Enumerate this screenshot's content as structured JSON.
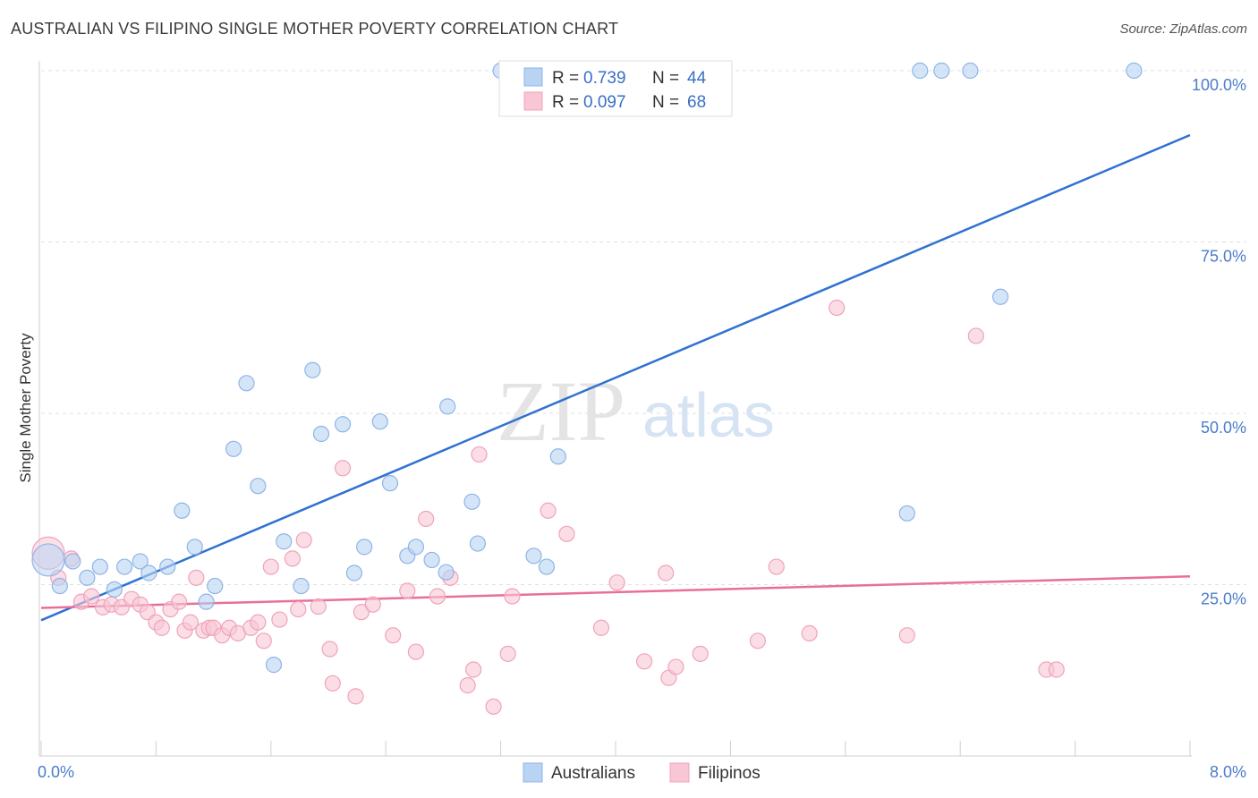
{
  "title": "AUSTRALIAN VS FILIPINO SINGLE MOTHER POVERTY CORRELATION CHART",
  "source": "Source: ZipAtlas.com",
  "watermark": {
    "zip": "ZIP",
    "atlas": "atlas"
  },
  "legend": {
    "rows": [
      {
        "r_label": "R =",
        "r_value": "0.739",
        "n_label": "N =",
        "n_value": "44"
      },
      {
        "r_label": "R =",
        "r_value": "0.097",
        "n_label": "N =",
        "n_value": "68"
      }
    ]
  },
  "bottom_legend": [
    "Australians",
    "Filipinos"
  ],
  "colors": {
    "australians_fill": "#b9d3f3",
    "australians_stroke": "#8fb4e6",
    "australians_line": "#2f72d0",
    "filipinos_fill": "#f8c6d5",
    "filipinos_stroke": "#f0a3ba",
    "filipinos_line": "#e86f98",
    "tick_text": "#4a7cc9"
  },
  "chart_data": {
    "type": "scatter",
    "xlabel": "",
    "ylabel": "Single Mother Poverty",
    "xlim": [
      0,
      8
    ],
    "ylim": [
      0,
      100
    ],
    "x_tick_labels": [
      "0.0%",
      "8.0%"
    ],
    "y_tick_labels": [
      "25.0%",
      "50.0%",
      "75.0%",
      "100.0%"
    ],
    "y_tick_values": [
      25,
      50,
      75,
      100
    ],
    "grid": true,
    "series": [
      {
        "name": "Australians",
        "trend": {
          "x": [
            0,
            8
          ],
          "y": [
            19.8,
            90.6
          ]
        },
        "points": [
          {
            "x": 0.05,
            "y": 28.6,
            "big": true
          },
          {
            "x": 0.13,
            "y": 24.8
          },
          {
            "x": 0.22,
            "y": 28.4
          },
          {
            "x": 0.32,
            "y": 26.0
          },
          {
            "x": 0.41,
            "y": 27.6
          },
          {
            "x": 0.51,
            "y": 24.3
          },
          {
            "x": 0.58,
            "y": 27.6
          },
          {
            "x": 0.69,
            "y": 28.4
          },
          {
            "x": 0.75,
            "y": 26.7
          },
          {
            "x": 0.88,
            "y": 27.6
          },
          {
            "x": 0.98,
            "y": 35.8
          },
          {
            "x": 1.07,
            "y": 30.5
          },
          {
            "x": 1.15,
            "y": 22.5
          },
          {
            "x": 1.21,
            "y": 24.8
          },
          {
            "x": 1.34,
            "y": 44.8
          },
          {
            "x": 1.43,
            "y": 54.4
          },
          {
            "x": 1.51,
            "y": 39.4
          },
          {
            "x": 1.62,
            "y": 13.3
          },
          {
            "x": 1.69,
            "y": 31.3
          },
          {
            "x": 1.81,
            "y": 24.8
          },
          {
            "x": 1.89,
            "y": 56.3
          },
          {
            "x": 1.95,
            "y": 47.0
          },
          {
            "x": 2.1,
            "y": 48.4
          },
          {
            "x": 2.18,
            "y": 26.7
          },
          {
            "x": 2.25,
            "y": 30.5
          },
          {
            "x": 2.36,
            "y": 48.8
          },
          {
            "x": 2.43,
            "y": 39.8
          },
          {
            "x": 2.55,
            "y": 29.2
          },
          {
            "x": 2.61,
            "y": 30.5
          },
          {
            "x": 2.72,
            "y": 28.6
          },
          {
            "x": 2.82,
            "y": 26.8
          },
          {
            "x": 2.83,
            "y": 51.0
          },
          {
            "x": 3.0,
            "y": 37.1
          },
          {
            "x": 3.04,
            "y": 31.0
          },
          {
            "x": 3.2,
            "y": 100.0
          },
          {
            "x": 3.43,
            "y": 29.2
          },
          {
            "x": 3.52,
            "y": 27.6
          },
          {
            "x": 3.6,
            "y": 43.7
          },
          {
            "x": 6.03,
            "y": 35.4
          },
          {
            "x": 6.12,
            "y": 100.0
          },
          {
            "x": 6.27,
            "y": 100.0
          },
          {
            "x": 6.47,
            "y": 100.0
          },
          {
            "x": 6.68,
            "y": 67.0
          },
          {
            "x": 7.61,
            "y": 100.0
          }
        ]
      },
      {
        "name": "Filipinos",
        "trend": {
          "x": [
            0,
            8
          ],
          "y": [
            21.6,
            26.2
          ]
        },
        "points": [
          {
            "x": 0.05,
            "y": 29.6,
            "big": true
          },
          {
            "x": 0.12,
            "y": 26.0
          },
          {
            "x": 0.21,
            "y": 28.8
          },
          {
            "x": 0.28,
            "y": 22.5
          },
          {
            "x": 0.35,
            "y": 23.3
          },
          {
            "x": 0.43,
            "y": 21.7
          },
          {
            "x": 0.49,
            "y": 22.1
          },
          {
            "x": 0.56,
            "y": 21.7
          },
          {
            "x": 0.63,
            "y": 22.9
          },
          {
            "x": 0.69,
            "y": 22.1
          },
          {
            "x": 0.74,
            "y": 21.0
          },
          {
            "x": 0.8,
            "y": 19.5
          },
          {
            "x": 0.84,
            "y": 18.7
          },
          {
            "x": 0.9,
            "y": 21.4
          },
          {
            "x": 0.96,
            "y": 22.5
          },
          {
            "x": 1.0,
            "y": 18.3
          },
          {
            "x": 1.04,
            "y": 19.5
          },
          {
            "x": 1.08,
            "y": 26.0
          },
          {
            "x": 1.13,
            "y": 18.3
          },
          {
            "x": 1.17,
            "y": 18.7
          },
          {
            "x": 1.2,
            "y": 18.7
          },
          {
            "x": 1.26,
            "y": 17.6
          },
          {
            "x": 1.31,
            "y": 18.7
          },
          {
            "x": 1.37,
            "y": 17.9
          },
          {
            "x": 1.46,
            "y": 18.7
          },
          {
            "x": 1.51,
            "y": 19.5
          },
          {
            "x": 1.55,
            "y": 16.8
          },
          {
            "x": 1.6,
            "y": 27.6
          },
          {
            "x": 1.66,
            "y": 19.9
          },
          {
            "x": 1.75,
            "y": 28.8
          },
          {
            "x": 1.79,
            "y": 21.4
          },
          {
            "x": 1.83,
            "y": 31.5
          },
          {
            "x": 1.93,
            "y": 21.8
          },
          {
            "x": 2.01,
            "y": 15.6
          },
          {
            "x": 2.03,
            "y": 10.6
          },
          {
            "x": 2.1,
            "y": 42.0
          },
          {
            "x": 2.19,
            "y": 8.7
          },
          {
            "x": 2.23,
            "y": 21.0
          },
          {
            "x": 2.31,
            "y": 22.1
          },
          {
            "x": 2.45,
            "y": 17.6
          },
          {
            "x": 2.55,
            "y": 24.1
          },
          {
            "x": 2.61,
            "y": 15.2
          },
          {
            "x": 2.68,
            "y": 34.6
          },
          {
            "x": 2.76,
            "y": 23.3
          },
          {
            "x": 2.85,
            "y": 26.0
          },
          {
            "x": 2.97,
            "y": 10.3
          },
          {
            "x": 3.01,
            "y": 12.6
          },
          {
            "x": 3.05,
            "y": 44.0
          },
          {
            "x": 3.15,
            "y": 7.2
          },
          {
            "x": 3.25,
            "y": 14.9
          },
          {
            "x": 3.28,
            "y": 23.3
          },
          {
            "x": 3.53,
            "y": 35.8
          },
          {
            "x": 3.66,
            "y": 32.4
          },
          {
            "x": 3.9,
            "y": 18.7
          },
          {
            "x": 4.01,
            "y": 25.3
          },
          {
            "x": 4.2,
            "y": 13.8
          },
          {
            "x": 4.35,
            "y": 26.7
          },
          {
            "x": 4.37,
            "y": 11.4
          },
          {
            "x": 4.42,
            "y": 13.0
          },
          {
            "x": 4.59,
            "y": 14.9
          },
          {
            "x": 4.99,
            "y": 16.8
          },
          {
            "x": 5.12,
            "y": 27.6
          },
          {
            "x": 5.35,
            "y": 17.9
          },
          {
            "x": 5.54,
            "y": 65.4
          },
          {
            "x": 6.03,
            "y": 17.6
          },
          {
            "x": 6.51,
            "y": 61.3
          },
          {
            "x": 7.0,
            "y": 12.6
          },
          {
            "x": 7.07,
            "y": 12.6
          }
        ]
      }
    ]
  }
}
